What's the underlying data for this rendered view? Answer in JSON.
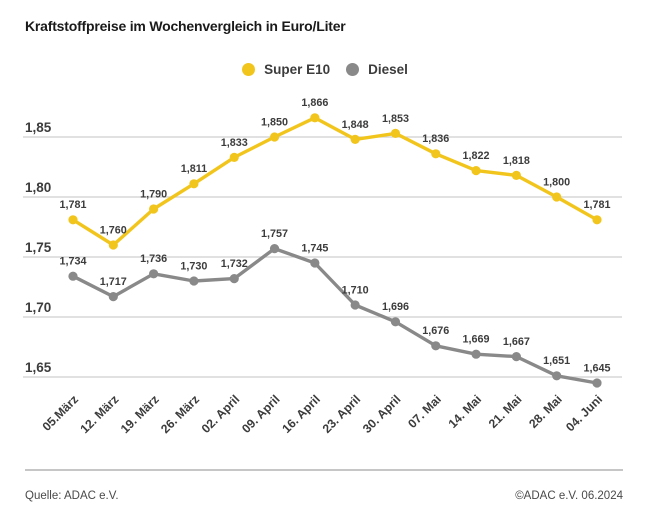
{
  "title": "Kraftstoffpreise im Wochenvergleich in Euro/Liter",
  "footer": {
    "source": "Quelle: ADAC e.V.",
    "copyright": "©ADAC e.V. 06.2024"
  },
  "colors": {
    "super_e10": "#F2C51D",
    "diesel": "#898989",
    "grid": "#cfcfcf",
    "text": "#3c3c3c"
  },
  "chart_data": {
    "type": "line",
    "title": "Kraftstoffpreise im Wochenvergleich in Euro/Liter",
    "xlabel": "",
    "ylabel": "Euro/Liter",
    "grid": true,
    "legend_position": "top-center",
    "ylim": [
      1.65,
      1.885
    ],
    "yticks": [
      1.85,
      1.8,
      1.75,
      1.7,
      1.65
    ],
    "ytick_labels": [
      "1,85",
      "1,80",
      "1,75",
      "1,70",
      "1,65"
    ],
    "categories": [
      "05.März",
      "12. März",
      "19. März",
      "26. März",
      "02. April",
      "09. April",
      "16. April",
      "23. April",
      "30. April",
      "07. Mai",
      "14. Mai",
      "21. Mai",
      "28. Mai",
      "04. Juni"
    ],
    "series": [
      {
        "name": "Super E10",
        "color": "#F2C51D",
        "values": [
          1.781,
          1.76,
          1.79,
          1.811,
          1.833,
          1.85,
          1.866,
          1.848,
          1.853,
          1.836,
          1.822,
          1.818,
          1.8,
          1.781
        ],
        "labels": [
          "1,781",
          "1,760",
          "1,790",
          "1,811",
          "1,833",
          "1,850",
          "1,866",
          "1,848",
          "1,853",
          "1,836",
          "1,822",
          "1,818",
          "1,800",
          "1,781"
        ]
      },
      {
        "name": "Diesel",
        "color": "#898989",
        "values": [
          1.734,
          1.717,
          1.736,
          1.73,
          1.732,
          1.757,
          1.745,
          1.71,
          1.696,
          1.676,
          1.669,
          1.667,
          1.651,
          1.645
        ],
        "labels": [
          "1,734",
          "1,717",
          "1,736",
          "1,730",
          "1,732",
          "1,757",
          "1,745",
          "1,710",
          "1,696",
          "1,676",
          "1,669",
          "1,667",
          "1,651",
          "1,645"
        ]
      }
    ]
  }
}
